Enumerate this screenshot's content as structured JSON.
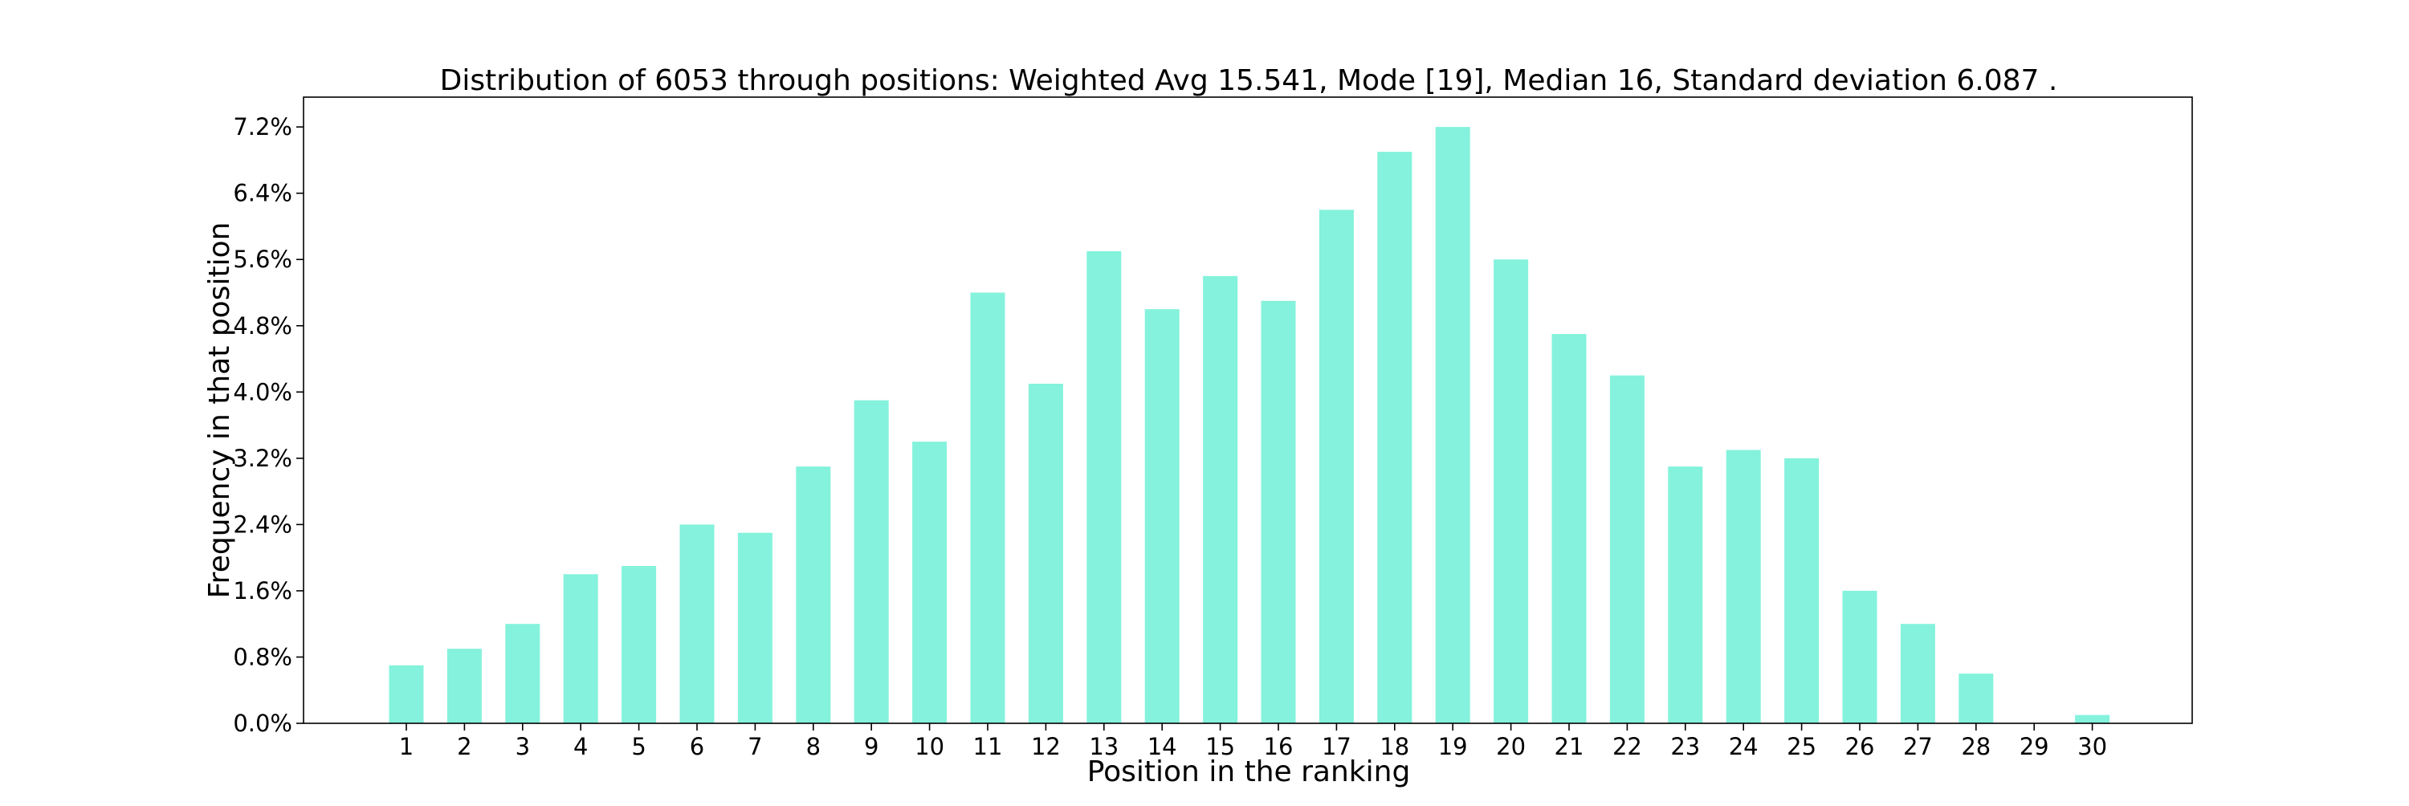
{
  "chart_data": {
    "type": "bar",
    "title": "Distribution of 6053 through positions: Weighted Avg 15.541, Mode [19], Median 16, Standard deviation 6.087 .",
    "xlabel": "Position in the ranking",
    "ylabel": "Frequency in that position",
    "categories": [
      "1",
      "2",
      "3",
      "4",
      "5",
      "6",
      "7",
      "8",
      "9",
      "10",
      "11",
      "12",
      "13",
      "14",
      "15",
      "16",
      "17",
      "18",
      "19",
      "20",
      "21",
      "22",
      "23",
      "24",
      "25",
      "26",
      "27",
      "28",
      "29",
      "30"
    ],
    "values": [
      0.7,
      0.9,
      1.2,
      1.8,
      1.9,
      2.4,
      2.3,
      3.1,
      3.9,
      3.4,
      5.2,
      4.1,
      5.7,
      5.0,
      5.4,
      5.1,
      6.2,
      6.9,
      7.2,
      5.6,
      4.7,
      4.2,
      3.1,
      3.3,
      3.2,
      1.6,
      1.2,
      0.6,
      0.0,
      0.1
    ],
    "value_unit": "%",
    "ylim": [
      0,
      7.56
    ],
    "yticks": [
      "0.0%",
      "0.8%",
      "1.6%",
      "2.4%",
      "3.2%",
      "4.0%",
      "4.8%",
      "5.6%",
      "6.4%",
      "7.2%"
    ],
    "ytick_values": [
      0,
      0.8,
      1.6,
      2.4,
      3.2,
      4.0,
      4.8,
      5.6,
      6.4,
      7.2
    ],
    "grid": false,
    "legend": "none",
    "bar_color": "#84F2DC"
  }
}
